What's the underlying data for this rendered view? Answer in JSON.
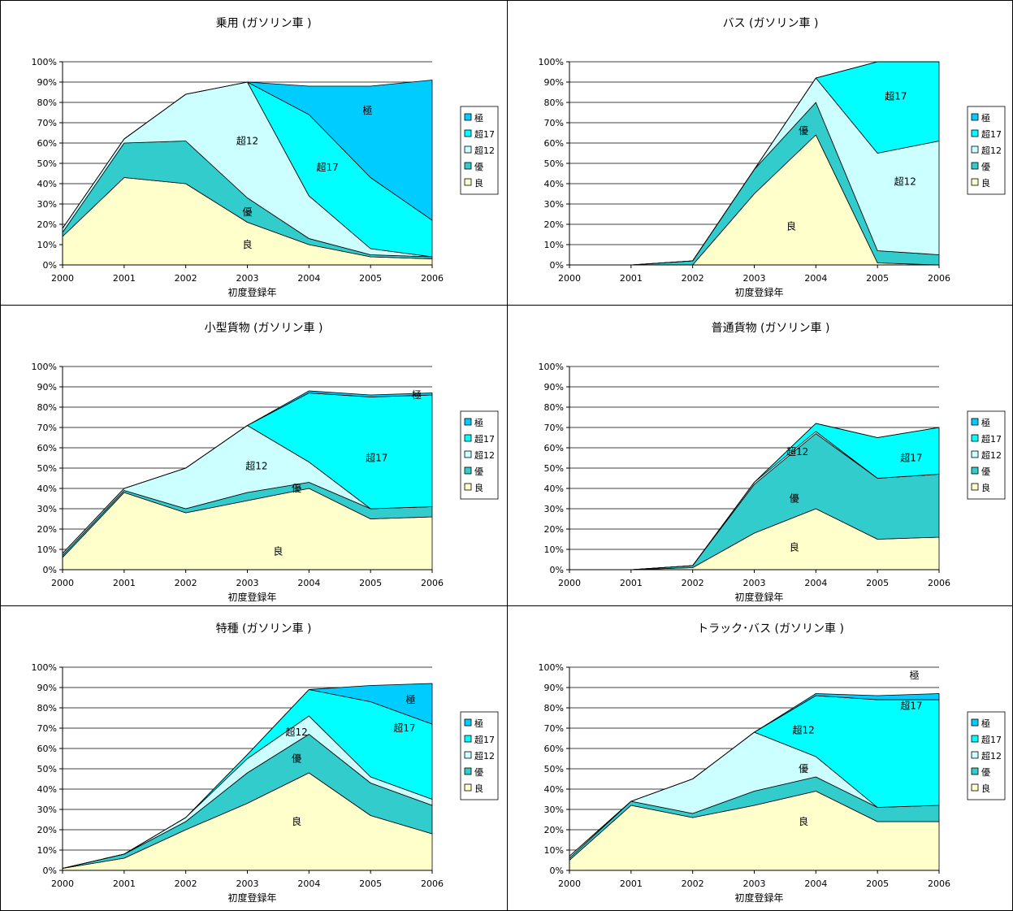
{
  "chart_data": [
    {
      "type": "area",
      "stacked": true,
      "title": "乗用 (ガソリン車 )",
      "xlabel": "初度登録年",
      "x": [
        "2000",
        "2001",
        "2002",
        "2003",
        "2004",
        "2005",
        "2006"
      ],
      "ylim": [
        0,
        100
      ],
      "yticks": [
        "0%",
        "10%",
        "20%",
        "30%",
        "40%",
        "50%",
        "60%",
        "70%",
        "80%",
        "90%",
        "100%"
      ],
      "grid": true,
      "legend_position": "right",
      "series": [
        {
          "name": "良",
          "color": "#ffffcc",
          "values": [
            14,
            43,
            40,
            21,
            10,
            4,
            3
          ]
        },
        {
          "name": "優",
          "color": "#33cccc",
          "values": [
            2,
            17,
            21,
            12,
            3,
            1,
            1
          ]
        },
        {
          "name": "超12",
          "color": "#ccffff",
          "values": [
            2,
            2,
            23,
            57,
            21,
            3,
            0
          ]
        },
        {
          "name": "超17",
          "color": "#00ffff",
          "values": [
            0,
            0,
            0,
            0,
            40,
            35,
            18
          ]
        },
        {
          "name": "極",
          "color": "#00ccff",
          "values": [
            0,
            0,
            0,
            0,
            14,
            45,
            69
          ]
        }
      ],
      "annotations": [
        {
          "text": "良",
          "x": 3,
          "y": 10
        },
        {
          "text": "優",
          "x": 3,
          "y": 26
        },
        {
          "text": "超12",
          "x": 3,
          "y": 61
        },
        {
          "text": "超17",
          "x": 4.3,
          "y": 48
        },
        {
          "text": "極",
          "x": 4.95,
          "y": 76
        }
      ]
    },
    {
      "type": "area",
      "stacked": true,
      "title": "バス (ガソリン車 )",
      "xlabel": "初度登録年",
      "x": [
        "2000",
        "2001",
        "2002",
        "2003",
        "2004",
        "2005",
        "2006"
      ],
      "ylim": [
        0,
        100
      ],
      "yticks": [
        "0%",
        "10%",
        "20%",
        "30%",
        "40%",
        "50%",
        "60%",
        "70%",
        "80%",
        "90%",
        "100%"
      ],
      "grid": true,
      "legend_position": "right",
      "series": [
        {
          "name": "良",
          "color": "#ffffcc",
          "values": [
            0,
            0,
            0,
            35,
            64,
            1,
            0
          ]
        },
        {
          "name": "優",
          "color": "#33cccc",
          "values": [
            0,
            0,
            2,
            12,
            16,
            6,
            5
          ]
        },
        {
          "name": "超12",
          "color": "#ccffff",
          "values": [
            0,
            0,
            0,
            0,
            12,
            48,
            56
          ]
        },
        {
          "name": "超17",
          "color": "#00ffff",
          "values": [
            0,
            0,
            0,
            0,
            0,
            45,
            39
          ]
        },
        {
          "name": "極",
          "color": "#00ccff",
          "values": [
            0,
            0,
            0,
            0,
            0,
            0,
            0
          ]
        }
      ],
      "annotations": [
        {
          "text": "良",
          "x": 3.6,
          "y": 19
        },
        {
          "text": "優",
          "x": 3.8,
          "y": 66
        },
        {
          "text": "超12",
          "x": 5.45,
          "y": 41
        },
        {
          "text": "超17",
          "x": 5.3,
          "y": 83
        }
      ]
    },
    {
      "type": "area",
      "stacked": true,
      "title": "小型貨物 (ガソリン車 )",
      "xlabel": "初度登録年",
      "x": [
        "2000",
        "2001",
        "2002",
        "2003",
        "2004",
        "2005",
        "2006"
      ],
      "ylim": [
        0,
        100
      ],
      "yticks": [
        "0%",
        "10%",
        "20%",
        "30%",
        "40%",
        "50%",
        "60%",
        "70%",
        "80%",
        "90%",
        "100%"
      ],
      "grid": true,
      "legend_position": "right",
      "series": [
        {
          "name": "良",
          "color": "#ffffcc",
          "values": [
            6,
            38,
            28,
            34,
            40,
            25,
            26
          ]
        },
        {
          "name": "優",
          "color": "#33cccc",
          "values": [
            1,
            1,
            2,
            4,
            3,
            5,
            5
          ]
        },
        {
          "name": "超12",
          "color": "#ccffff",
          "values": [
            1,
            1,
            20,
            33,
            10,
            0,
            0
          ]
        },
        {
          "name": "超17",
          "color": "#00ffff",
          "values": [
            0,
            0,
            0,
            0,
            34,
            55,
            55
          ]
        },
        {
          "name": "極",
          "color": "#00ccff",
          "values": [
            0,
            0,
            0,
            0,
            1,
            1,
            1
          ]
        }
      ],
      "annotations": [
        {
          "text": "良",
          "x": 3.5,
          "y": 9
        },
        {
          "text": "優",
          "x": 3.8,
          "y": 40
        },
        {
          "text": "超12",
          "x": 3.15,
          "y": 51
        },
        {
          "text": "超17",
          "x": 5.1,
          "y": 55
        },
        {
          "text": "極",
          "x": 5.75,
          "y": 86
        }
      ]
    },
    {
      "type": "area",
      "stacked": true,
      "title": "普通貨物 (ガソリン車 )",
      "xlabel": "初度登録年",
      "x": [
        "2000",
        "2001",
        "2002",
        "2003",
        "2004",
        "2005",
        "2006"
      ],
      "ylim": [
        0,
        100
      ],
      "yticks": [
        "0%",
        "10%",
        "20%",
        "30%",
        "40%",
        "50%",
        "60%",
        "70%",
        "80%",
        "90%",
        "100%"
      ],
      "grid": true,
      "legend_position": "right",
      "series": [
        {
          "name": "良",
          "color": "#ffffcc",
          "values": [
            0,
            0,
            1,
            18,
            30,
            15,
            16
          ]
        },
        {
          "name": "優",
          "color": "#33cccc",
          "values": [
            0,
            0,
            1,
            24,
            37,
            30,
            31
          ]
        },
        {
          "name": "超12",
          "color": "#ccffff",
          "values": [
            0,
            0,
            0,
            1,
            1,
            0,
            0
          ]
        },
        {
          "name": "超17",
          "color": "#00ffff",
          "values": [
            0,
            0,
            0,
            0,
            4,
            20,
            23
          ]
        },
        {
          "name": "極",
          "color": "#00ccff",
          "values": [
            0,
            0,
            0,
            0,
            0,
            0,
            0
          ]
        }
      ],
      "annotations": [
        {
          "text": "良",
          "x": 3.65,
          "y": 11
        },
        {
          "text": "優",
          "x": 3.65,
          "y": 35
        },
        {
          "text": "超12",
          "x": 3.7,
          "y": 58
        },
        {
          "text": "超17",
          "x": 5.55,
          "y": 55
        }
      ]
    },
    {
      "type": "area",
      "stacked": true,
      "title": "特種 (ガソリン車 )",
      "xlabel": "初度登録年",
      "x": [
        "2000",
        "2001",
        "2002",
        "2003",
        "2004",
        "2005",
        "2006"
      ],
      "ylim": [
        0,
        100
      ],
      "yticks": [
        "0%",
        "10%",
        "20%",
        "30%",
        "40%",
        "50%",
        "60%",
        "70%",
        "80%",
        "90%",
        "100%"
      ],
      "grid": true,
      "legend_position": "right",
      "series": [
        {
          "name": "良",
          "color": "#ffffcc",
          "values": [
            1,
            6,
            20,
            33,
            48,
            27,
            18
          ]
        },
        {
          "name": "優",
          "color": "#33cccc",
          "values": [
            0,
            2,
            4,
            15,
            19,
            16,
            14
          ]
        },
        {
          "name": "超12",
          "color": "#ccffff",
          "values": [
            0,
            0,
            2,
            7,
            9,
            3,
            3
          ]
        },
        {
          "name": "超17",
          "color": "#00ffff",
          "values": [
            0,
            0,
            0,
            2,
            13,
            37,
            37
          ]
        },
        {
          "name": "極",
          "color": "#00ccff",
          "values": [
            0,
            0,
            0,
            0,
            0,
            8,
            20
          ]
        }
      ],
      "annotations": [
        {
          "text": "良",
          "x": 3.8,
          "y": 24
        },
        {
          "text": "優",
          "x": 3.8,
          "y": 55
        },
        {
          "text": "超12",
          "x": 3.8,
          "y": 68
        },
        {
          "text": "超17",
          "x": 5.55,
          "y": 70
        },
        {
          "text": "極",
          "x": 5.65,
          "y": 84
        }
      ]
    },
    {
      "type": "area",
      "stacked": true,
      "title": "トラック･バス (ガソリン車 )",
      "xlabel": "初度登録年",
      "x": [
        "2000",
        "2001",
        "2002",
        "2003",
        "2004",
        "2005",
        "2006"
      ],
      "ylim": [
        0,
        100
      ],
      "yticks": [
        "0%",
        "10%",
        "20%",
        "30%",
        "40%",
        "50%",
        "60%",
        "70%",
        "80%",
        "90%",
        "100%"
      ],
      "grid": true,
      "legend_position": "right",
      "series": [
        {
          "name": "良",
          "color": "#ffffcc",
          "values": [
            5,
            32,
            26,
            32,
            39,
            24,
            24
          ]
        },
        {
          "name": "優",
          "color": "#33cccc",
          "values": [
            1,
            2,
            2,
            7,
            7,
            7,
            8
          ]
        },
        {
          "name": "超12",
          "color": "#ccffff",
          "values": [
            1,
            0,
            17,
            29,
            10,
            0,
            0
          ]
        },
        {
          "name": "超17",
          "color": "#00ffff",
          "values": [
            0,
            0,
            0,
            0,
            30,
            53,
            52
          ]
        },
        {
          "name": "極",
          "color": "#00ccff",
          "values": [
            0,
            0,
            0,
            0,
            1,
            2,
            3
          ]
        }
      ],
      "annotations": [
        {
          "text": "良",
          "x": 3.8,
          "y": 24
        },
        {
          "text": "優",
          "x": 3.8,
          "y": 50
        },
        {
          "text": "超12",
          "x": 3.8,
          "y": 69
        },
        {
          "text": "超17",
          "x": 5.55,
          "y": 81
        },
        {
          "text": "極",
          "x": 5.6,
          "y": 96
        }
      ]
    }
  ]
}
